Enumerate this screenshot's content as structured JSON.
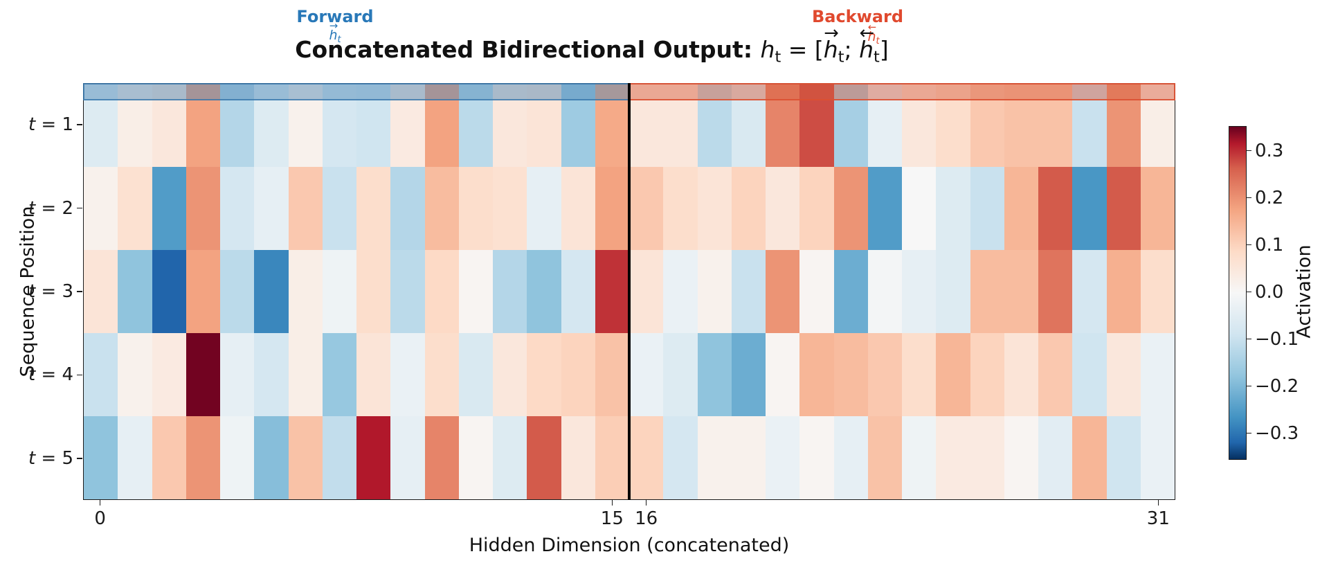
{
  "title": {
    "prefix": "Concatenated Bidirectional Output:",
    "math": {
      "h": "h",
      "t": "t",
      "eq": " = [",
      "semi": "; ",
      "close": "]",
      "right_arrow": "→",
      "left_arrow": "←"
    }
  },
  "annotations": {
    "forward": {
      "label": "Forward",
      "color": "#2878B8"
    },
    "backward": {
      "label": "Backward",
      "color": "#E0492E"
    }
  },
  "overlays": {
    "forward_fill": "rgba(70,130,180,0.45)",
    "forward_border": "rgba(50,115,170,0.75)",
    "backward_fill": "rgba(215,90,60,0.45)",
    "backward_border": "rgba(220,80,50,0.9)"
  },
  "axes": {
    "xlabel": "Hidden Dimension (concatenated)",
    "ylabel": "Sequence Position",
    "xticks": [
      {
        "label": "0",
        "col": 0
      },
      {
        "label": "15",
        "col": 15
      },
      {
        "label": "16",
        "col": 16
      },
      {
        "label": "31",
        "col": 31
      }
    ],
    "yticks": [
      {
        "sym": "t",
        "rest": " = 1"
      },
      {
        "sym": "t",
        "rest": " = 2"
      },
      {
        "sym": "t",
        "rest": " = 3"
      },
      {
        "sym": "t",
        "rest": " = 4"
      },
      {
        "sym": "t",
        "rest": " = 5"
      }
    ]
  },
  "colorbar": {
    "label": "Activation",
    "vmax": 0.3525,
    "vmin": -0.3565,
    "ticks": [
      {
        "label": "0.3",
        "value": 0.3
      },
      {
        "label": "0.2",
        "value": 0.2
      },
      {
        "label": "0.1",
        "value": 0.1
      },
      {
        "label": "0.0",
        "value": 0.0
      },
      {
        "label": "−0.1",
        "value": -0.1
      },
      {
        "label": "−0.2",
        "value": -0.2
      },
      {
        "label": "−0.3",
        "value": -0.3
      }
    ]
  },
  "chart_data": {
    "type": "heatmap",
    "title": "Concatenated Bidirectional Output: h_t = [h_t(forward); h_t(backward)]",
    "xlabel": "Hidden Dimension (concatenated)",
    "ylabel": "Sequence Position",
    "colormap": "RdBu_r",
    "vabsmax": 0.355,
    "n_cols": 32,
    "col_range": [
      0,
      31
    ],
    "divider_after_col": 15,
    "forward_cols": [
      0,
      15
    ],
    "backward_cols": [
      16,
      31
    ],
    "rows": [
      "t = 1",
      "t = 2",
      "t = 3",
      "t = 4",
      "t = 5"
    ],
    "values": [
      [
        -0.06,
        0.03,
        0.05,
        0.18,
        -0.13,
        -0.06,
        0.02,
        -0.08,
        -0.09,
        0.04,
        0.18,
        -0.12,
        0.05,
        0.06,
        -0.16,
        0.17,
        0.05,
        0.05,
        -0.12,
        -0.07,
        0.22,
        0.28,
        -0.15,
        -0.04,
        0.05,
        0.08,
        0.12,
        0.13,
        0.13,
        -0.1,
        0.2,
        0.03
      ],
      [
        0.02,
        0.07,
        -0.25,
        0.2,
        -0.08,
        -0.04,
        0.12,
        -0.1,
        0.08,
        -0.13,
        0.14,
        0.08,
        0.07,
        -0.04,
        0.06,
        0.18,
        0.12,
        0.08,
        0.06,
        0.1,
        0.05,
        0.1,
        0.2,
        -0.25,
        0.0,
        -0.06,
        -0.1,
        0.15,
        0.27,
        -0.26,
        0.27,
        0.15
      ],
      [
        0.06,
        -0.18,
        -0.32,
        0.18,
        -0.12,
        -0.28,
        0.03,
        -0.02,
        0.08,
        -0.12,
        0.09,
        0.01,
        -0.13,
        -0.18,
        -0.08,
        0.3,
        0.06,
        -0.03,
        0.02,
        -0.1,
        0.2,
        0.01,
        -0.22,
        -0.01,
        -0.04,
        -0.06,
        0.14,
        0.14,
        0.24,
        -0.08,
        0.16,
        0.08
      ],
      [
        -0.1,
        0.02,
        0.04,
        0.35,
        -0.04,
        -0.08,
        0.03,
        -0.17,
        0.06,
        -0.03,
        0.08,
        -0.07,
        0.05,
        0.09,
        0.1,
        0.13,
        -0.03,
        -0.06,
        -0.18,
        -0.22,
        0.01,
        0.15,
        0.14,
        0.12,
        0.08,
        0.15,
        0.1,
        0.06,
        0.12,
        -0.09,
        0.05,
        -0.03
      ],
      [
        -0.18,
        -0.04,
        0.12,
        0.2,
        -0.02,
        -0.19,
        0.13,
        -0.11,
        0.32,
        -0.04,
        0.22,
        0.01,
        -0.06,
        0.27,
        0.05,
        0.11,
        0.1,
        -0.08,
        0.02,
        0.02,
        -0.03,
        0.01,
        -0.04,
        0.13,
        -0.02,
        0.04,
        0.04,
        0.01,
        -0.05,
        0.15,
        -0.09,
        -0.03
      ]
    ],
    "colormap_stops": [
      {
        "t": -1.0,
        "c": "#053061"
      },
      {
        "t": -0.9,
        "c": "#2166ac"
      },
      {
        "t": -0.75,
        "c": "#4393c3"
      },
      {
        "t": -0.5,
        "c": "#92c5de"
      },
      {
        "t": -0.25,
        "c": "#d1e5f0"
      },
      {
        "t": 0.0,
        "c": "#f7f7f7"
      },
      {
        "t": 0.25,
        "c": "#fddbc7"
      },
      {
        "t": 0.5,
        "c": "#f4a582"
      },
      {
        "t": 0.75,
        "c": "#d6604d"
      },
      {
        "t": 0.9,
        "c": "#b2182b"
      },
      {
        "t": 1.0,
        "c": "#67001f"
      }
    ]
  }
}
